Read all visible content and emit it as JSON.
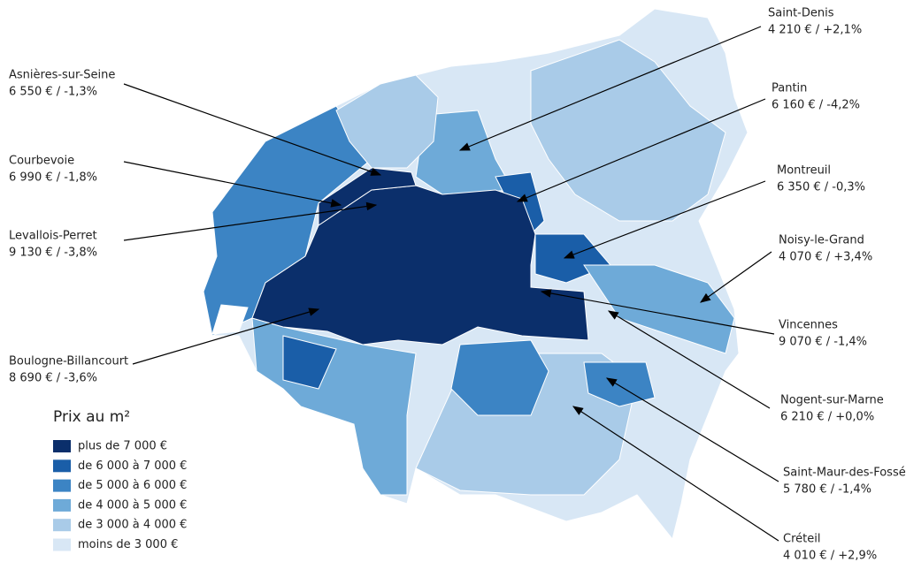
{
  "legend": {
    "title": "Prix au m²",
    "items": [
      {
        "label": "plus de 7 000 €",
        "color": "#0b2f6b"
      },
      {
        "label": "de 6 000 à 7 000 €",
        "color": "#1a5ea8"
      },
      {
        "label": "de 5 000 à 6 000 €",
        "color": "#3c84c4"
      },
      {
        "label": "de 4 000 à 5 000 €",
        "color": "#6eaad8"
      },
      {
        "label": "de 3 000 à 4 000 €",
        "color": "#a9cbe8"
      },
      {
        "label": "moins de 3 000 €",
        "color": "#d8e7f5"
      }
    ]
  },
  "callouts": [
    {
      "name": "Asnières-sur-Seine",
      "label": "6 550 € / -1,3%"
    },
    {
      "name": "Courbevoie",
      "label": "6 990 € / -1,8%"
    },
    {
      "name": "Levallois-Perret",
      "label": "9 130 € / -3,8%"
    },
    {
      "name": "Boulogne-Billancourt",
      "label": "8 690 € / -3,6%"
    },
    {
      "name": "Saint-Denis",
      "label": "4 210 € / +2,1%"
    },
    {
      "name": "Pantin",
      "label": "6 160 € / -4,2%"
    },
    {
      "name": "Montreuil",
      "label": "6 350 € / -0,3%"
    },
    {
      "name": "Noisy-le-Grand",
      "label": "4 070 € / +3,4%"
    },
    {
      "name": "Vincennes",
      "label": "9 070 € / -1,4%"
    },
    {
      "name": "Nogent-sur-Marne",
      "label": "6 210 € / +0,0%"
    },
    {
      "name": "Saint-Maur-des-Fossés",
      "label": "5 780 € / -1,4%"
    },
    {
      "name": "Créteil",
      "label": "4 010 € / +2,9%"
    }
  ]
}
